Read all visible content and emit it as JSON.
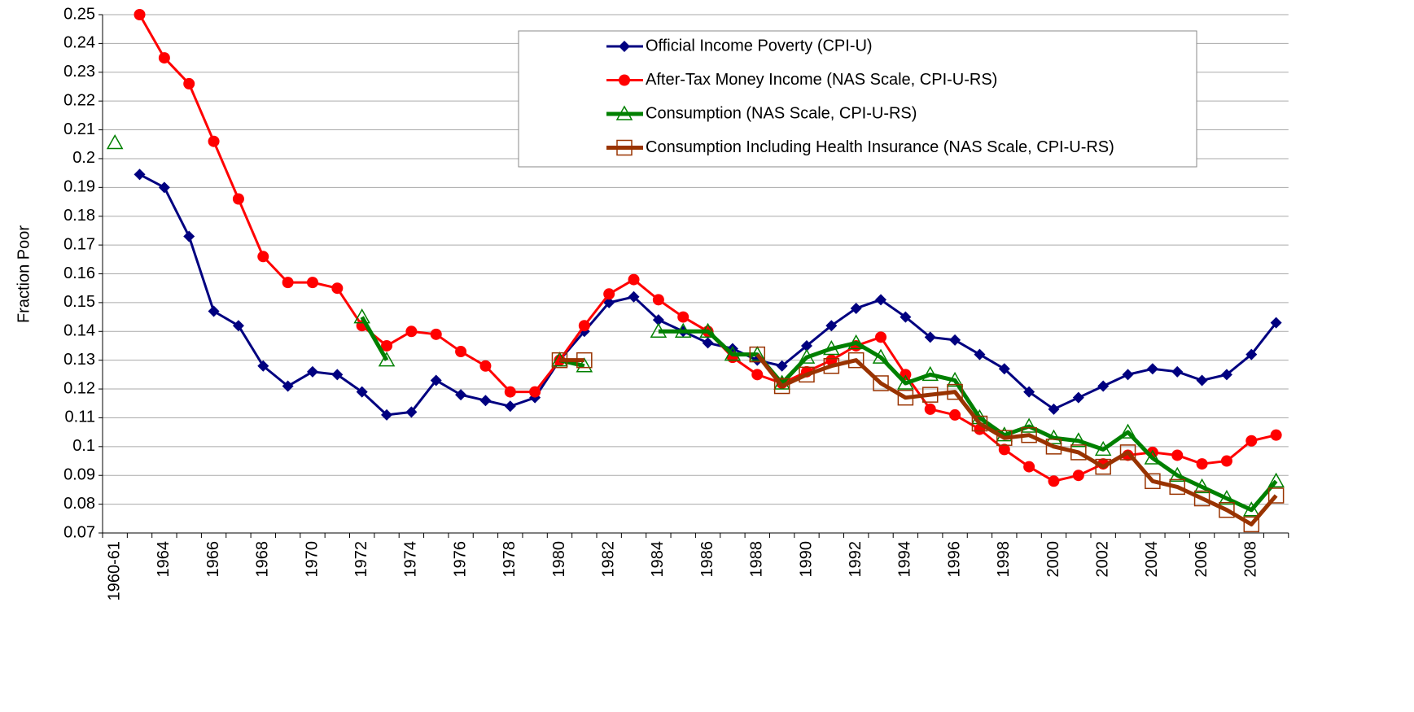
{
  "chart_data": {
    "type": "line",
    "y_label": "Fraction Poor",
    "categories": [
      "1960-61",
      null,
      "1964",
      null,
      "1966",
      null,
      "1968",
      null,
      "1970",
      null,
      "1972",
      null,
      "1974",
      null,
      "1976",
      null,
      "1978",
      null,
      "1980",
      null,
      "1982",
      null,
      "1984",
      null,
      "1986",
      null,
      "1988",
      null,
      "1990",
      null,
      "1992",
      null,
      "1994",
      null,
      "1996",
      null,
      "1998",
      null,
      "2000",
      null,
      "2002",
      null,
      "2004",
      null,
      "2006",
      null,
      "2008",
      null
    ],
    "ylim": [
      0.07,
      0.25
    ],
    "yticks": [
      0.07,
      0.08,
      0.09,
      0.1,
      0.11,
      0.12,
      0.13,
      0.14,
      0.15,
      0.16,
      0.17,
      0.18,
      0.19,
      0.2,
      0.21,
      0.22,
      0.23,
      0.24,
      0.25
    ],
    "grid": true,
    "series": [
      {
        "name": "Official Income Poverty (CPI-U)",
        "color": "#000080",
        "marker": "diamond",
        "values": [
          null,
          0.1945,
          0.19,
          0.173,
          0.147,
          0.142,
          0.128,
          0.121,
          0.126,
          0.125,
          0.119,
          0.111,
          0.112,
          0.123,
          0.118,
          0.116,
          0.114,
          0.117,
          0.13,
          0.14,
          0.15,
          0.152,
          0.144,
          0.14,
          0.136,
          0.134,
          0.13,
          0.128,
          0.135,
          0.142,
          0.148,
          0.151,
          0.145,
          0.138,
          0.137,
          0.132,
          0.127,
          0.119,
          0.113,
          0.117,
          0.121,
          0.125,
          0.127,
          0.126,
          0.123,
          0.125,
          0.132,
          0.143
        ]
      },
      {
        "name": "After-Tax Money Income (NAS Scale, CPI-U-RS)",
        "color": "#ff0000",
        "marker": "circle",
        "values": [
          null,
          0.25,
          0.235,
          0.226,
          0.206,
          0.186,
          0.166,
          0.157,
          0.157,
          0.155,
          0.142,
          0.135,
          0.14,
          0.139,
          0.133,
          0.128,
          0.119,
          0.119,
          0.13,
          0.142,
          0.153,
          0.158,
          0.151,
          0.145,
          0.14,
          0.131,
          0.125,
          0.122,
          0.126,
          0.13,
          0.135,
          0.138,
          0.125,
          0.113,
          0.111,
          0.106,
          0.099,
          0.093,
          0.088,
          0.09,
          0.094,
          0.097,
          0.098,
          0.097,
          0.094,
          0.095,
          0.102,
          0.104
        ]
      },
      {
        "name": "Consumption (NAS Scale, CPI-U-RS)",
        "color": "#008000",
        "marker": "triangle",
        "values": [
          0.2055,
          null,
          null,
          null,
          null,
          null,
          null,
          null,
          null,
          null,
          0.145,
          0.13,
          null,
          null,
          null,
          null,
          null,
          null,
          0.13,
          0.128,
          null,
          null,
          0.14,
          0.14,
          0.14,
          0.132,
          0.132,
          0.122,
          0.131,
          0.134,
          0.136,
          0.131,
          0.122,
          0.125,
          0.123,
          0.11,
          0.104,
          0.107,
          0.103,
          0.102,
          0.099,
          0.105,
          0.096,
          0.09,
          0.086,
          0.082,
          0.078,
          0.088
        ]
      },
      {
        "name": "Consumption Including Health Insurance (NAS Scale, CPI-U-RS)",
        "color": "#993300",
        "marker": "square",
        "values": [
          null,
          null,
          null,
          null,
          null,
          null,
          null,
          null,
          null,
          null,
          null,
          null,
          null,
          null,
          null,
          null,
          null,
          null,
          0.13,
          0.13,
          null,
          null,
          null,
          null,
          null,
          null,
          0.132,
          0.121,
          0.125,
          0.128,
          0.13,
          0.122,
          0.117,
          0.118,
          0.119,
          0.108,
          0.103,
          0.104,
          0.1,
          0.098,
          0.093,
          0.098,
          0.088,
          0.086,
          0.082,
          0.078,
          0.073,
          0.083
        ]
      }
    ]
  }
}
